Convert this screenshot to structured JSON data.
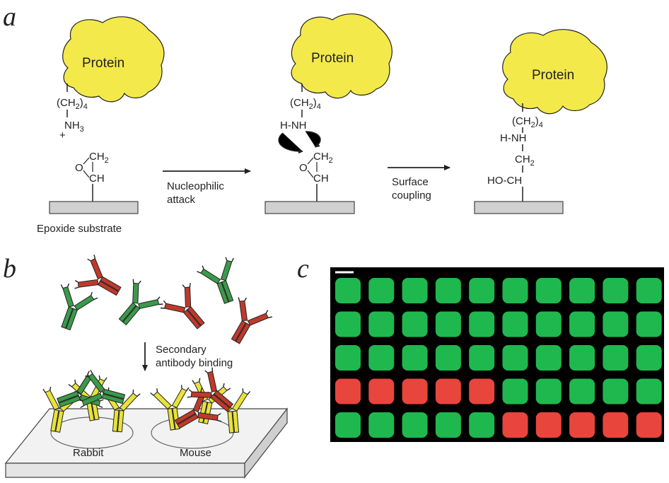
{
  "panels": {
    "a": {
      "letter": "a",
      "protein_label": "Protein",
      "step1": {
        "chain_prefix": "(CH",
        "chain_sub": "2",
        "chain_suffix": ")",
        "chain_n": "4",
        "amine_main": "NH",
        "amine_sub": "3",
        "charge": "+",
        "epoxide_ch2": "CH",
        "epoxide_ch2_sub": "2",
        "epoxide_o": "O",
        "epoxide_ch": "CH",
        "substrate_label": "Epoxide substrate"
      },
      "arrow1": {
        "line1": "Nucleophilic",
        "line2": "attack"
      },
      "step2": {
        "hnh": "H-NH"
      },
      "arrow2": {
        "line1": "Surface",
        "line2": "coupling"
      },
      "step3": {
        "hnh": "H-NH",
        "hoch": "HO-CH"
      }
    },
    "b": {
      "letter": "b",
      "arrow_line1": "Secondary",
      "arrow_line2": "antibody binding",
      "spot_left": "Rabbit",
      "spot_right": "Mouse"
    },
    "c": {
      "letter": "c",
      "array_background": "#000000",
      "rows": [
        [
          "green",
          "green",
          "green",
          "green",
          "green",
          "green",
          "green",
          "green",
          "green",
          "green"
        ],
        [
          "green",
          "green",
          "green",
          "green",
          "green",
          "green",
          "green",
          "green",
          "green",
          "green"
        ],
        [
          "green",
          "green",
          "green",
          "green",
          "green",
          "green",
          "green",
          "green",
          "green",
          "green"
        ],
        [
          "red",
          "red",
          "red",
          "red",
          "red",
          "green",
          "green",
          "green",
          "green",
          "green"
        ],
        [
          "green",
          "green",
          "green",
          "green",
          "green",
          "red",
          "red",
          "red",
          "red",
          "red"
        ]
      ]
    }
  },
  "colors": {
    "protein": "#f3e94a",
    "substrate": "#d0d0d0",
    "ab_green": "#3a9a4a",
    "ab_red": "#c0392b",
    "ab_yellow": "#e8e23a",
    "spot_green": "#1fb84e",
    "spot_red": "#e8453c"
  }
}
